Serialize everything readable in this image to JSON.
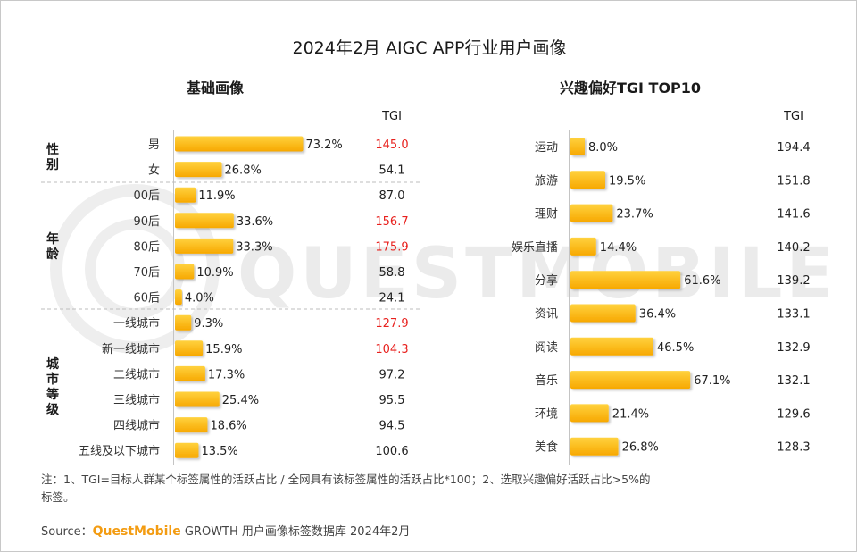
{
  "title": "2024年2月 AIGC APP行业用户画像",
  "colors": {
    "bar_top": "#ffd23f",
    "bar_bottom": "#f7a800",
    "highlight": "#e8211e",
    "brand": "#f39c12"
  },
  "watermark": "QUESTMOBILE",
  "chart_data": [
    {
      "type": "bar",
      "orientation": "horizontal",
      "title": "基础画像",
      "tgi_header": "TGI",
      "value_unit": "%",
      "groups": [
        {
          "name": "性别",
          "name_chars": [
            "性",
            "别"
          ],
          "categories": [
            "男",
            "女"
          ],
          "values": [
            73.2,
            26.8
          ],
          "tgi": [
            145.0,
            54.1
          ],
          "tgi_highlight": [
            true,
            false
          ]
        },
        {
          "name": "年龄",
          "name_chars": [
            "年",
            "龄"
          ],
          "categories": [
            "00后",
            "90后",
            "80后",
            "70后",
            "60后"
          ],
          "values": [
            11.9,
            33.6,
            33.3,
            10.9,
            4.0
          ],
          "tgi": [
            87.0,
            156.7,
            175.9,
            58.8,
            24.1
          ],
          "tgi_highlight": [
            false,
            true,
            true,
            false,
            false
          ]
        },
        {
          "name": "城市等级",
          "name_chars": [
            "城",
            "市",
            "等",
            "级"
          ],
          "categories": [
            "一线城市",
            "新一线城市",
            "二线城市",
            "三线城市",
            "四线城市",
            "五线及以下城市"
          ],
          "values": [
            9.3,
            15.9,
            17.3,
            25.4,
            18.6,
            13.5
          ],
          "tgi": [
            127.9,
            104.3,
            97.2,
            95.5,
            94.5,
            100.6
          ],
          "tgi_highlight": [
            true,
            true,
            false,
            false,
            false,
            false
          ]
        }
      ]
    },
    {
      "type": "bar",
      "orientation": "horizontal",
      "title": "兴趣偏好TGI TOP10",
      "tgi_header": "TGI",
      "value_unit": "%",
      "categories": [
        "运动",
        "旅游",
        "理财",
        "娱乐直播",
        "分享",
        "资讯",
        "阅读",
        "音乐",
        "环境",
        "美食"
      ],
      "values": [
        8.0,
        19.5,
        23.7,
        14.4,
        61.6,
        36.4,
        46.5,
        67.1,
        21.4,
        26.8
      ],
      "tgi": [
        194.4,
        151.8,
        141.6,
        140.2,
        139.2,
        133.1,
        132.9,
        132.1,
        129.6,
        128.3
      ]
    }
  ],
  "note": {
    "line1": "注：1、TGI=目标人群某个标签属性的活跃占比 / 全网具有该标签属性的活跃占比*100；2、选取兴趣偏好活跃占比>5%的",
    "line2": "标签。"
  },
  "source": {
    "label": "Source：",
    "brand": "QuestMobile",
    "text": " GROWTH 用户画像标签数据库 2024年2月"
  }
}
